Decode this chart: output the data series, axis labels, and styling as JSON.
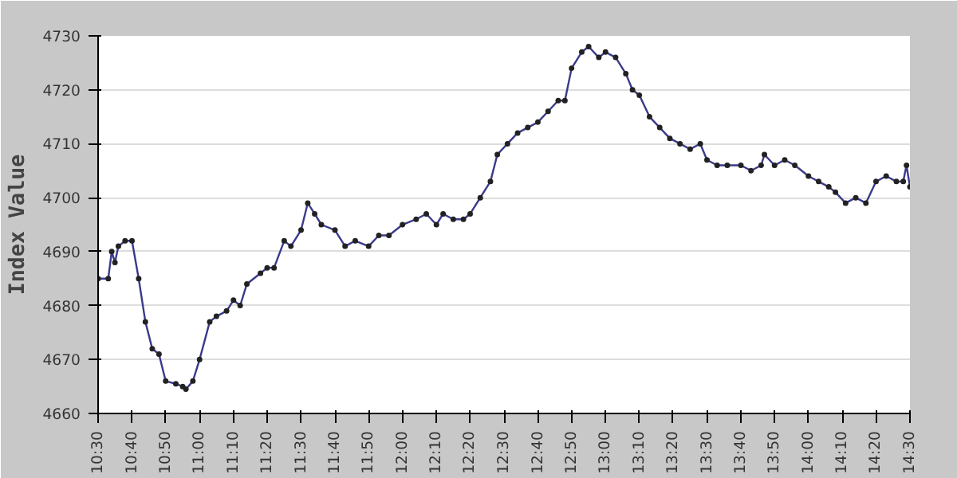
{
  "chart_data": {
    "type": "line",
    "ylabel": "Index Value",
    "x": [
      10.5,
      10.55,
      10.567,
      10.583,
      10.6,
      10.633,
      10.667,
      10.7,
      10.733,
      10.767,
      10.8,
      10.833,
      10.883,
      10.917,
      10.933,
      10.967,
      11.0,
      11.05,
      11.083,
      11.133,
      11.167,
      11.2,
      11.233,
      11.3,
      11.333,
      11.367,
      11.417,
      11.45,
      11.5,
      11.533,
      11.567,
      11.6,
      11.667,
      11.717,
      11.767,
      11.833,
      11.883,
      11.933,
      12.0,
      12.067,
      12.117,
      12.167,
      12.2,
      12.25,
      12.3,
      12.333,
      12.383,
      12.433,
      12.467,
      12.517,
      12.567,
      12.617,
      12.667,
      12.717,
      12.767,
      12.8,
      12.833,
      12.883,
      12.917,
      12.967,
      13.0,
      13.05,
      13.1,
      13.133,
      13.167,
      13.217,
      13.267,
      13.317,
      13.367,
      13.417,
      13.467,
      13.5,
      13.55,
      13.6,
      13.667,
      13.717,
      13.767,
      13.783,
      13.833,
      13.883,
      13.933,
      14.0,
      14.05,
      14.1,
      14.133,
      14.183,
      14.233,
      14.283,
      14.333,
      14.383,
      14.433,
      14.467,
      14.483,
      14.5
    ],
    "series": [
      {
        "color": "#3a3a8c",
        "values": [
          4685,
          4685,
          4690,
          4688,
          4691,
          4692,
          4692,
          4685,
          4677,
          4672,
          4671,
          4666,
          4665.5,
          4665,
          4664.5,
          4666,
          4670,
          4677,
          4678,
          4679,
          4681,
          4680,
          4684,
          4686,
          4687,
          4687,
          4692,
          4691,
          4694,
          4699,
          4697,
          4695,
          4694,
          4691,
          4692,
          4691,
          4693,
          4693,
          4695,
          4696,
          4697,
          4695,
          4697,
          4696,
          4696,
          4697,
          4700,
          4703,
          4708,
          4710,
          4712,
          4713,
          4714,
          4716,
          4718,
          4718,
          4724,
          4727,
          4728,
          4726,
          4727,
          4726,
          4723,
          4720,
          4719,
          4715,
          4713,
          4711,
          4710,
          4709,
          4710,
          4707,
          4706,
          4706,
          4706,
          4705,
          4706,
          4708,
          4706,
          4707,
          4706,
          4704,
          4703,
          4702,
          4701,
          4699,
          4700,
          4699,
          4703,
          4704,
          4703,
          4703,
          4706,
          4702
        ]
      }
    ],
    "xlim": [
      10.5,
      14.5
    ],
    "xticks": [
      {
        "value": 10.5,
        "label": "10:30"
      },
      {
        "value": 10.667,
        "label": "10:40"
      },
      {
        "value": 10.833,
        "label": "10:50"
      },
      {
        "value": 11.0,
        "label": "11:00"
      },
      {
        "value": 11.167,
        "label": "11:10"
      },
      {
        "value": 11.333,
        "label": "11:20"
      },
      {
        "value": 11.5,
        "label": "11:30"
      },
      {
        "value": 11.667,
        "label": "11:40"
      },
      {
        "value": 11.833,
        "label": "11:50"
      },
      {
        "value": 12.0,
        "label": "12:00"
      },
      {
        "value": 12.167,
        "label": "12:10"
      },
      {
        "value": 12.333,
        "label": "12:20"
      },
      {
        "value": 12.5,
        "label": "12:30"
      },
      {
        "value": 12.667,
        "label": "12:40"
      },
      {
        "value": 12.833,
        "label": "12:50"
      },
      {
        "value": 13.0,
        "label": "13:00"
      },
      {
        "value": 13.167,
        "label": "13:10"
      },
      {
        "value": 13.333,
        "label": "13:20"
      },
      {
        "value": 13.5,
        "label": "13:30"
      },
      {
        "value": 13.667,
        "label": "13:40"
      },
      {
        "value": 13.833,
        "label": "13:50"
      },
      {
        "value": 14.0,
        "label": "14:00"
      },
      {
        "value": 14.167,
        "label": "14:10"
      },
      {
        "value": 14.333,
        "label": "14:20"
      },
      {
        "value": 14.5,
        "label": "14:30"
      }
    ],
    "ylim": [
      4660,
      4730
    ],
    "yticks": [
      4660,
      4670,
      4680,
      4690,
      4700,
      4710,
      4720,
      4730
    ],
    "grid": "y",
    "marker": "circle",
    "line_style": "solid"
  }
}
